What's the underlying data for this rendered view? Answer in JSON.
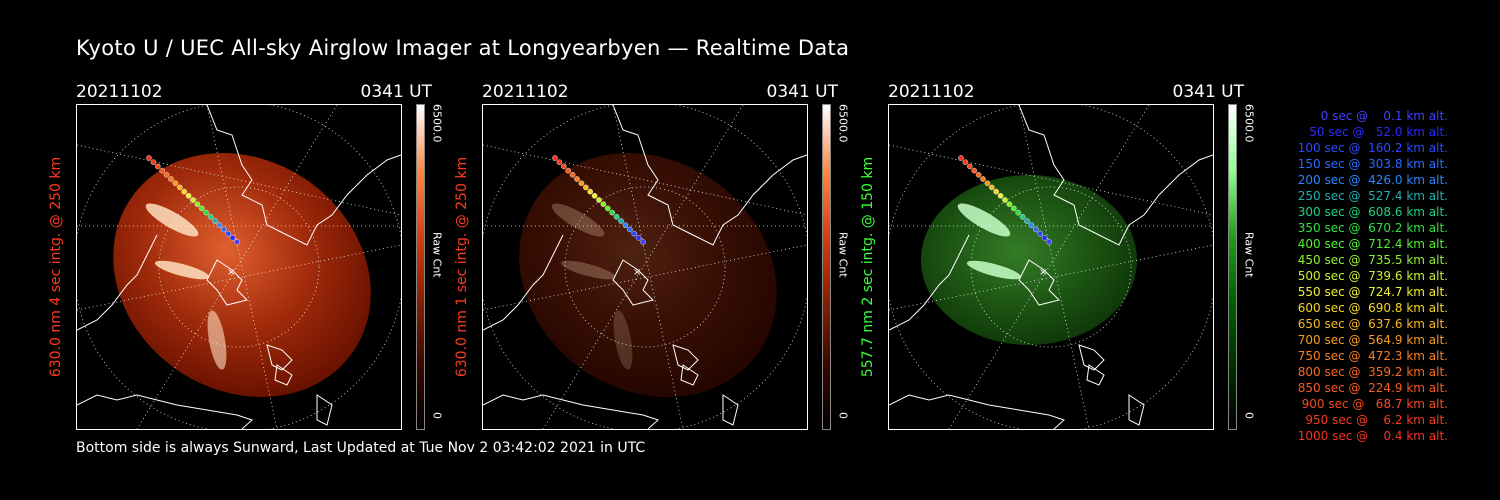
{
  "title": "Kyoto U / UEC All-sky Airglow Imager at Longyearbyen — Realtime Data",
  "footer": "Bottom side is always Sunward, Last Updated at Tue Nov  2 03:42:02 2021 in UTC",
  "panels": [
    {
      "date": "20211102",
      "time": "0341 UT",
      "ylabel": "630.0 nm 4 sec intg. @ 250 km",
      "ylabel_color": "#ff3b1e",
      "cmax": "6500.0",
      "cmin": "0",
      "cunit": "Raw Cnt",
      "theme": "red-bright"
    },
    {
      "date": "20211102",
      "time": "0341 UT",
      "ylabel": "630.0 nm 1 sec intg. @ 250 km",
      "ylabel_color": "#ff3b1e",
      "cmax": "6500.0",
      "cmin": "0",
      "cunit": "Raw Cnt",
      "theme": "red-dim"
    },
    {
      "date": "20211102",
      "time": "0341 UT",
      "ylabel": "557.7 nm 2 sec intg. @ 150 km",
      "ylabel_color": "#3cff3c",
      "cmax": "6500.0",
      "cmin": "0",
      "cunit": "Raw Cnt",
      "theme": "green"
    }
  ],
  "legend": [
    {
      "text": "   0 sec @    0.1 km alt.",
      "color": "#4040ff"
    },
    {
      "text": "  50 sec @   52.0 km alt.",
      "color": "#2a2aff"
    },
    {
      "text": " 100 sec @  160.2 km alt.",
      "color": "#2a4aff"
    },
    {
      "text": " 150 sec @  303.8 km alt.",
      "color": "#2a6aff"
    },
    {
      "text": " 200 sec @  426.0 km alt.",
      "color": "#2a86ff"
    },
    {
      "text": " 250 sec @  527.4 km alt.",
      "color": "#20b0b0"
    },
    {
      "text": " 300 sec @  608.6 km alt.",
      "color": "#20d080"
    },
    {
      "text": " 350 sec @  670.2 km alt.",
      "color": "#30e040"
    },
    {
      "text": " 400 sec @  712.4 km alt.",
      "color": "#50f030"
    },
    {
      "text": " 450 sec @  735.5 km alt.",
      "color": "#90f030"
    },
    {
      "text": " 500 sec @  739.6 km alt.",
      "color": "#c8f030"
    },
    {
      "text": " 550 sec @  724.7 km alt.",
      "color": "#f0f030"
    },
    {
      "text": " 600 sec @  690.8 km alt.",
      "color": "#f8d820"
    },
    {
      "text": " 650 sec @  637.6 km alt.",
      "color": "#f8b820"
    },
    {
      "text": " 700 sec @  564.9 km alt.",
      "color": "#f89a20"
    },
    {
      "text": " 750 sec @  472.3 km alt.",
      "color": "#f88020"
    },
    {
      "text": " 800 sec @  359.2 km alt.",
      "color": "#f86a20"
    },
    {
      "text": " 850 sec @  224.9 km alt.",
      "color": "#f85a20"
    },
    {
      "text": " 900 sec @   68.7 km alt.",
      "color": "#f84a20"
    },
    {
      "text": " 950 sec @    6.2 km alt.",
      "color": "#f83a20"
    },
    {
      "text": "1000 sec @    0.4 km alt.",
      "color": "#f83020"
    }
  ]
}
